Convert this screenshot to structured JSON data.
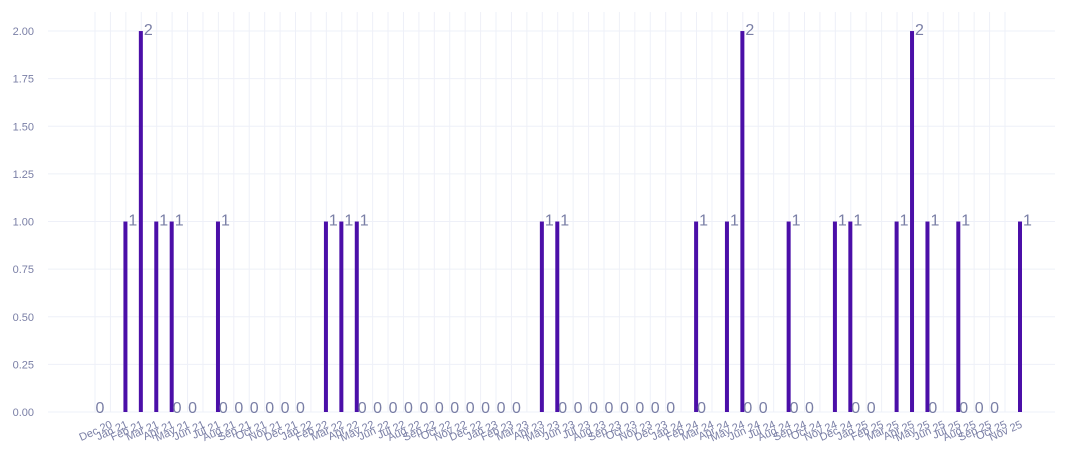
{
  "chart_data": {
    "type": "bar",
    "categories": [
      "Dec 20",
      "Jan 21",
      "Feb 21",
      "Mar 21",
      "Apr 21",
      "May 21",
      "Jun 21",
      "Jul 21",
      "Aug 21",
      "Sep 21",
      "Oct 21",
      "Nov 21",
      "Dec 21",
      "Jan 22",
      "Feb 22",
      "Mar 22",
      "Apr 22",
      "May 22",
      "Jun 22",
      "Jul 22",
      "Aug 22",
      "Sep 22",
      "Oct 22",
      "Nov 22",
      "Dec 22",
      "Jan 23",
      "Feb 23",
      "Mar 23",
      "Apr 23",
      "May 23",
      "Jun 23",
      "Jul 23",
      "Aug 23",
      "Sep 23",
      "Oct 23",
      "Nov 23",
      "Dec 23",
      "Jan 24",
      "Feb 24",
      "Mar 24",
      "Apr 24",
      "May 24",
      "Jun 24",
      "Jul 24",
      "Aug 24",
      "Sep 24",
      "Oct 24",
      "Nov 24",
      "Dec 24",
      "Jan 25",
      "Feb 25",
      "Mar 25",
      "Apr 25",
      "May 25",
      "Jun 25",
      "Jul 25",
      "Aug 25",
      "Sep 25",
      "Oct 25",
      "Nov 25"
    ],
    "values": [
      0,
      1,
      2,
      1,
      1,
      0,
      0,
      1,
      0,
      0,
      0,
      0,
      0,
      0,
      1,
      1,
      1,
      0,
      0,
      0,
      0,
      0,
      0,
      0,
      0,
      0,
      0,
      0,
      1,
      1,
      0,
      0,
      0,
      0,
      0,
      0,
      0,
      0,
      1,
      0,
      1,
      2,
      0,
      0,
      1,
      0,
      0,
      1,
      1,
      0,
      0,
      1,
      2,
      1,
      0,
      1,
      0,
      0,
      0,
      1
    ],
    "ylim": [
      0,
      2.1
    ],
    "yticks": [
      "0.00",
      "0.25",
      "0.50",
      "0.75",
      "1.00",
      "1.25",
      "1.50",
      "1.75",
      "2.00"
    ],
    "ytick_values": [
      0,
      0.25,
      0.5,
      0.75,
      1,
      1.25,
      1.5,
      1.75,
      2
    ],
    "grid": true,
    "title": "",
    "xlabel": "",
    "ylabel": "",
    "colors": {
      "bar": "#4b0fa8",
      "label": "#7a7fa6",
      "grid": "#eef0f8"
    }
  }
}
